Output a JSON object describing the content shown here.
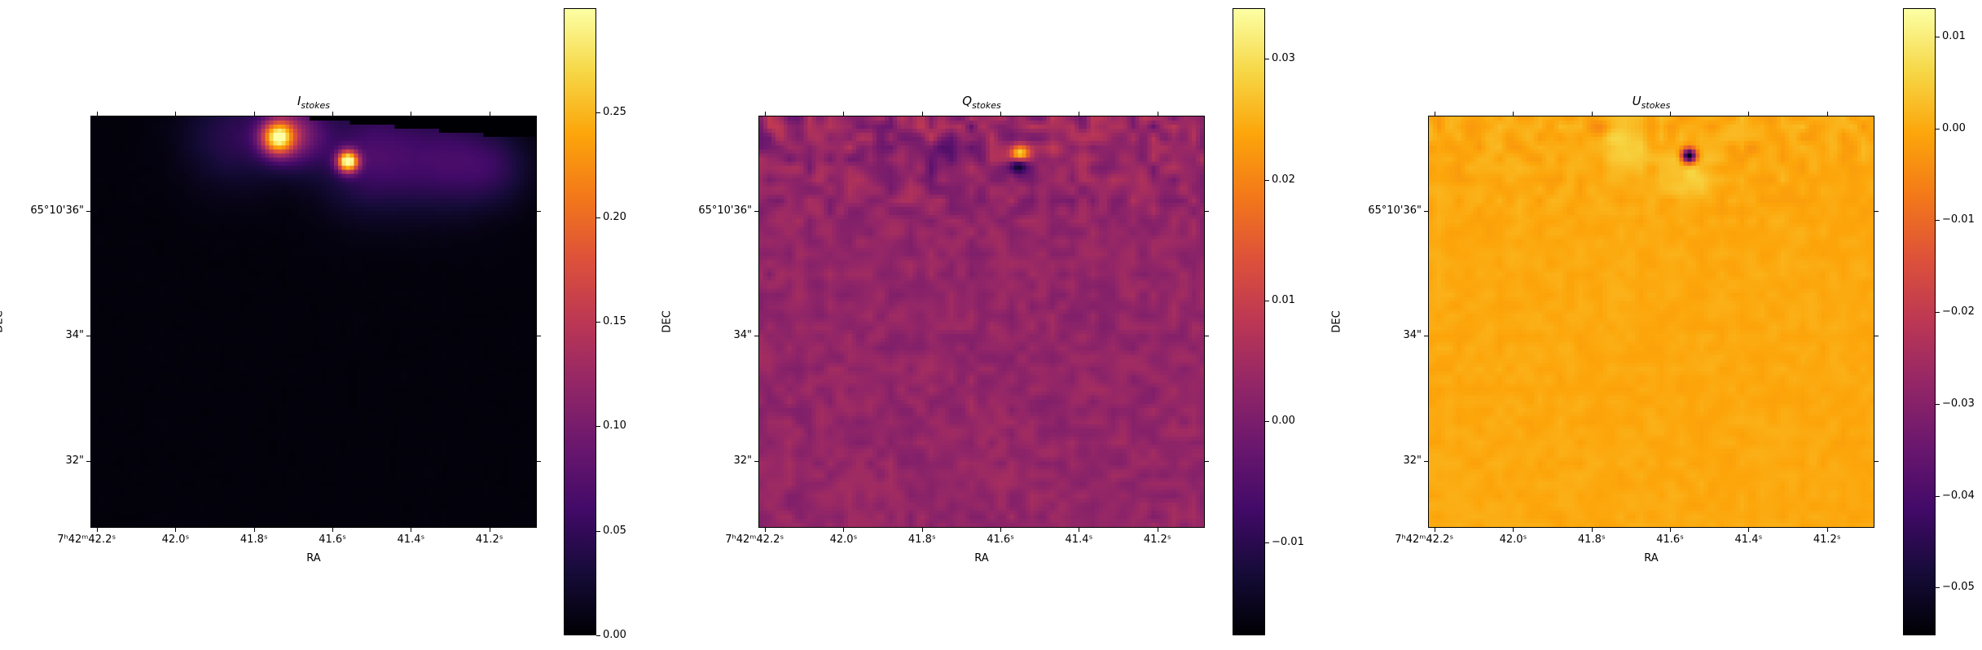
{
  "chart_data": [
    {
      "type": "heatmap",
      "title": {
        "main": "I",
        "sub": "stokes"
      },
      "xlabel": "RA",
      "ylabel": "DEC",
      "colormap": "inferno",
      "x_ticks": [
        42.2,
        42.0,
        41.8,
        41.6,
        41.4,
        41.2
      ],
      "x_tick_labels": [
        "7ʰ42ᵐ42.2ˢ",
        "42.0ˢ",
        "41.8ˢ",
        "41.6ˢ",
        "41.4ˢ",
        "41.2ˢ"
      ],
      "y_ticks": [
        36,
        34,
        32
      ],
      "y_tick_labels": [
        "65°10'36\"",
        "34\"",
        "32\""
      ],
      "xlim_ra_seconds": [
        42.217,
        41.079
      ],
      "ylim_dec_arcsec": [
        30.93,
        37.52
      ],
      "colorbar": {
        "vmin": 0.0,
        "vmax": 0.3,
        "ticks": [
          0.0,
          0.05,
          0.1,
          0.15,
          0.2,
          0.25
        ],
        "tick_labels": [
          "0.00",
          "0.05",
          "0.10",
          "0.15",
          "0.20",
          "0.25"
        ]
      },
      "background_value": 0.004,
      "noise": 0.001,
      "features": [
        {
          "ra": 41.56,
          "dec": 36.8,
          "value": 0.28,
          "extent_arcsec": 0.12
        },
        {
          "ra": 41.74,
          "dec": 37.18,
          "value": 0.22,
          "extent_arcsec": 0.18
        },
        {
          "ra": 41.7,
          "dec": 37.25,
          "value": 0.1,
          "extent_arcsec": 0.35
        },
        {
          "ra": 41.5,
          "dec": 36.9,
          "value": 0.06,
          "extent_arcsec": 0.6
        },
        {
          "ra": 41.3,
          "dec": 36.8,
          "value": 0.05,
          "extent_arcsec": 0.55
        },
        {
          "ra": 41.85,
          "dec": 37.2,
          "value": 0.04,
          "extent_arcsec": 0.55
        },
        {
          "ra": 41.18,
          "dec": 36.7,
          "value": 0.03,
          "extent_arcsec": 0.4
        }
      ]
    },
    {
      "type": "heatmap",
      "title": {
        "main": "Q",
        "sub": "stokes"
      },
      "xlabel": "RA",
      "ylabel": "DEC",
      "colormap": "inferno",
      "x_ticks": [
        42.2,
        42.0,
        41.8,
        41.6,
        41.4,
        41.2
      ],
      "x_tick_labels": [
        "7ʰ42ᵐ42.2ˢ",
        "42.0ˢ",
        "41.8ˢ",
        "41.6ˢ",
        "41.4ˢ",
        "41.2ˢ"
      ],
      "y_ticks": [
        36,
        34,
        32
      ],
      "y_tick_labels": [
        "65°10'36\"",
        "34\"",
        "32\""
      ],
      "xlim_ra_seconds": [
        42.217,
        41.079
      ],
      "ylim_dec_arcsec": [
        30.93,
        37.52
      ],
      "colorbar": {
        "vmin": -0.0177,
        "vmax": 0.0342,
        "ticks": [
          -0.01,
          0.0,
          0.01,
          0.02,
          0.03
        ],
        "tick_labels": [
          "−0.01",
          "0.00",
          "0.01",
          "0.02",
          "0.03"
        ]
      },
      "background_value": 0.003,
      "noise": 0.0025,
      "features": [
        {
          "ra": 41.549,
          "dec": 36.91,
          "value": 0.031,
          "extent_arcsec": 0.1
        },
        {
          "ra": 41.553,
          "dec": 36.75,
          "value": -0.02,
          "extent_arcsec": 0.1
        },
        {
          "ra": 41.75,
          "dec": 36.95,
          "value": -0.005,
          "extent_arcsec": 0.3
        },
        {
          "ra": 41.78,
          "dec": 37.3,
          "value": 0.006,
          "extent_arcsec": 0.18
        },
        {
          "ra": 41.45,
          "dec": 36.95,
          "value": 0.005,
          "extent_arcsec": 0.12
        }
      ]
    },
    {
      "type": "heatmap",
      "title": {
        "main": "U",
        "sub": "stokes"
      },
      "xlabel": "RA",
      "ylabel": "DEC",
      "colormap": "inferno",
      "x_ticks": [
        42.2,
        42.0,
        41.8,
        41.6,
        41.4,
        41.2
      ],
      "x_tick_labels": [
        "7ʰ42ᵐ42.2ˢ",
        "42.0ˢ",
        "41.8ˢ",
        "41.6ˢ",
        "41.4ˢ",
        "41.2ˢ"
      ],
      "y_ticks": [
        36,
        34,
        32
      ],
      "y_tick_labels": [
        "65°10'36\"",
        "34\"",
        "32\""
      ],
      "xlim_ra_seconds": [
        42.217,
        41.079
      ],
      "ylim_dec_arcsec": [
        30.93,
        37.52
      ],
      "colorbar": {
        "vmin": -0.0552,
        "vmax": 0.0131,
        "ticks": [
          -0.05,
          -0.04,
          -0.03,
          -0.02,
          -0.01,
          0.0,
          0.01
        ],
        "tick_labels": [
          "−0.05",
          "−0.04",
          "−0.03",
          "−0.02",
          "−0.01",
          "0.00",
          "0.01"
        ]
      },
      "background_value": 0.0,
      "noise": 0.0012,
      "features": [
        {
          "ra": 41.551,
          "dec": 36.89,
          "value": -0.058,
          "extent_arcsec": 0.08
        },
        {
          "ra": 41.72,
          "dec": 37.05,
          "value": 0.007,
          "extent_arcsec": 0.25
        },
        {
          "ra": 41.55,
          "dec": 36.6,
          "value": 0.006,
          "extent_arcsec": 0.25
        },
        {
          "ra": 41.78,
          "dec": 37.3,
          "value": -0.004,
          "extent_arcsec": 0.12
        },
        {
          "ra": 41.4,
          "dec": 37.0,
          "value": -0.003,
          "extent_arcsec": 0.12
        }
      ]
    }
  ]
}
